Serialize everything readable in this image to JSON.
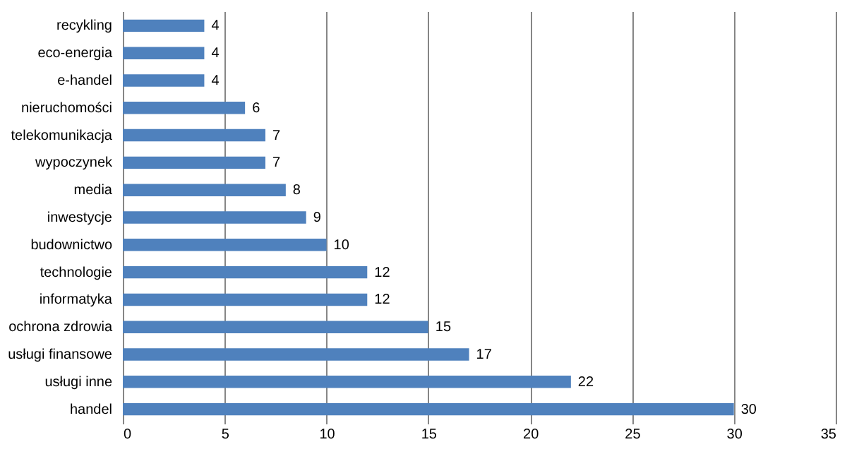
{
  "chart_data": {
    "type": "bar",
    "orientation": "horizontal",
    "categories": [
      "recykling",
      "eco-energia",
      "e-handel",
      "nieruchomości",
      "telekomunikacja",
      "wypoczynek",
      "media",
      "inwestycje",
      "budownictwo",
      "technologie",
      "informatyka",
      "ochrona zdrowia",
      "usługi finansowe",
      "usługi inne",
      "handel"
    ],
    "values": [
      4,
      4,
      4,
      6,
      7,
      7,
      8,
      9,
      10,
      12,
      12,
      15,
      17,
      22,
      30
    ],
    "color": "#4f81bd",
    "xlim": [
      0,
      35
    ],
    "xticks": [
      0,
      5,
      10,
      15,
      20,
      25,
      30,
      35
    ],
    "grid": "x",
    "data_labels": true
  }
}
